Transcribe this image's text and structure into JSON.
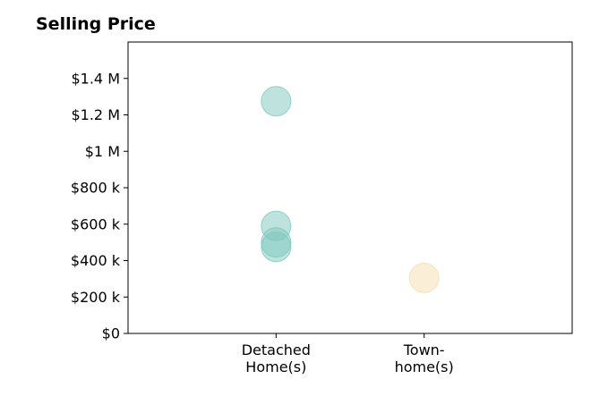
{
  "chart_data": {
    "type": "scatter",
    "title": "Selling Price",
    "xlabel": "",
    "ylabel": "",
    "categories": [
      "Detached\nHome(s)",
      "Town-\nhome(s)"
    ],
    "xlim": [
      0,
      3
    ],
    "ylim": [
      0,
      1600000
    ],
    "yticks": [
      0,
      200000,
      400000,
      600000,
      800000,
      1000000,
      1200000,
      1400000
    ],
    "ytick_labels": [
      "$0",
      "$200 k",
      "$400 k",
      "$600 k",
      "$800 k",
      "$1 M",
      "$1.2 M",
      "$1.4 M"
    ],
    "grid": false,
    "series": [
      {
        "category": "Detached\nHome(s)",
        "color": "#7ec8bd",
        "values": [
          1275000,
          590000,
          500000,
          475000
        ]
      },
      {
        "category": "Town-\nhome(s)",
        "color": "#f5deb0",
        "values": [
          305000
        ]
      }
    ]
  }
}
